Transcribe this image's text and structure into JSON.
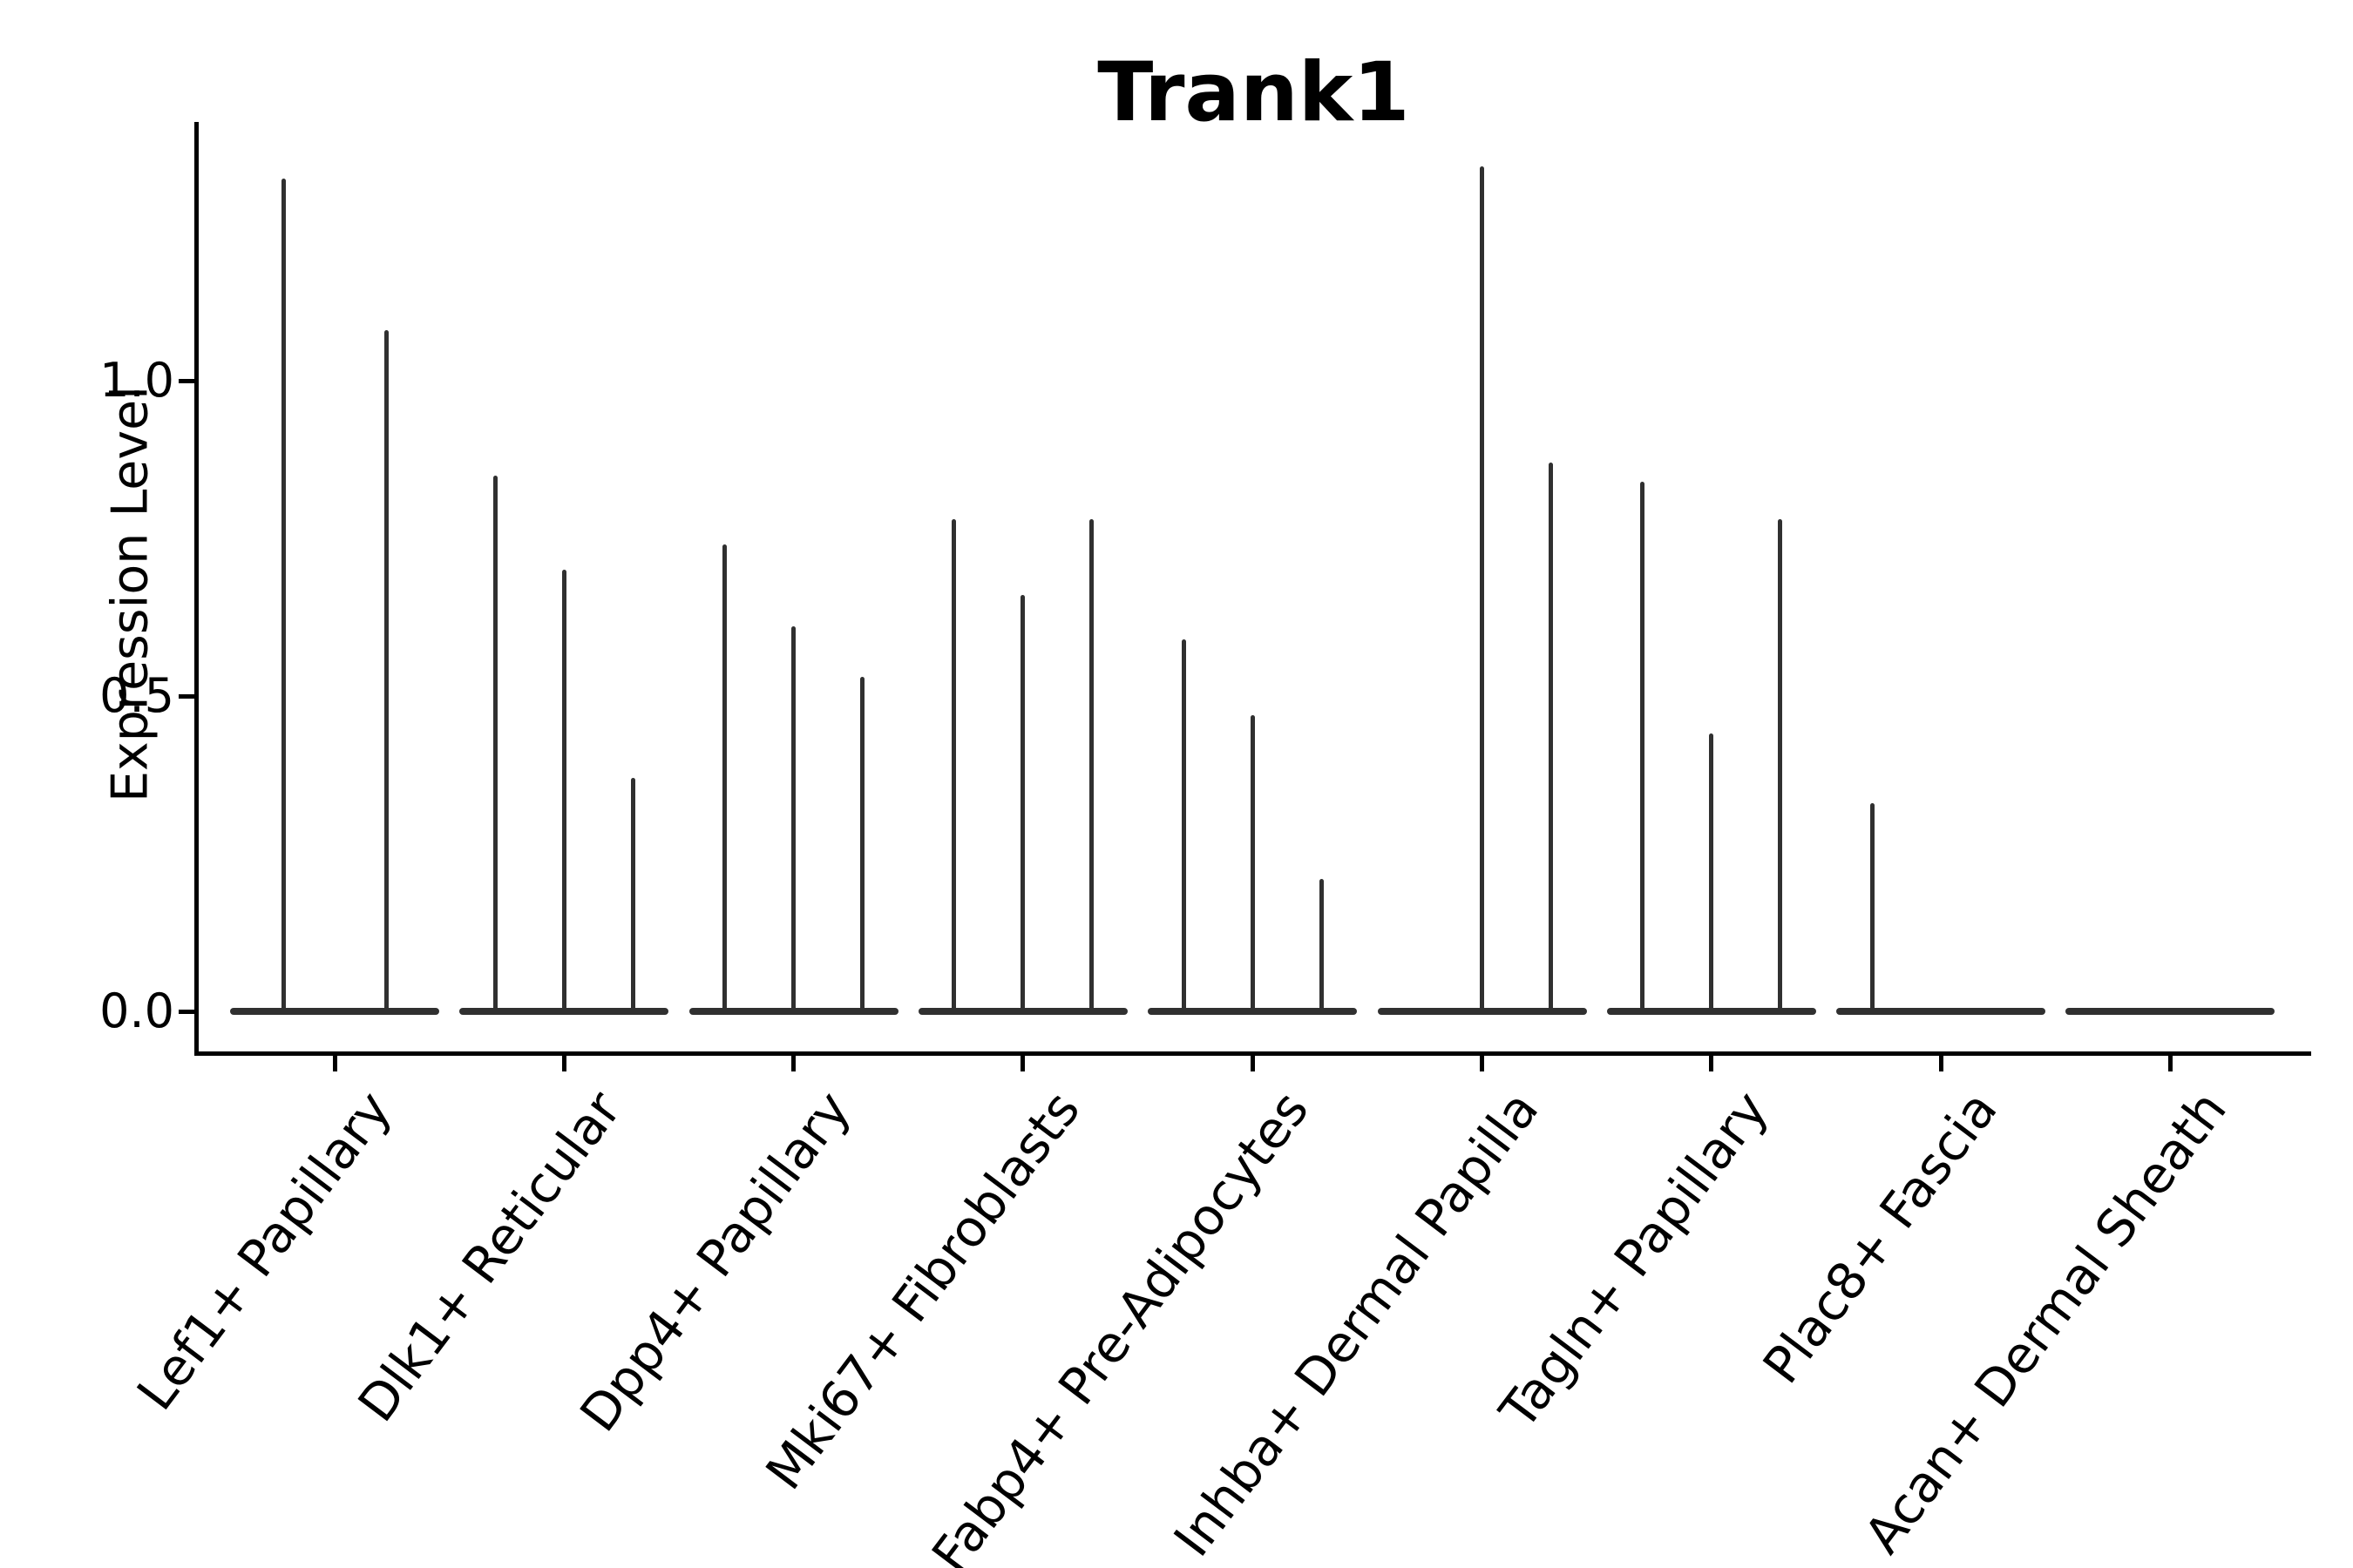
{
  "title": "Trank1",
  "chart_data": {
    "type": "violin",
    "title": "Trank1",
    "xlabel": "",
    "ylabel": "Expression Level",
    "ylim": [
      -0.07,
      1.41
    ],
    "yticks": [
      0.0,
      0.5,
      1.0
    ],
    "ytick_labels": [
      "0.0",
      "0.5",
      "1.0"
    ],
    "grid": false,
    "legend": "none",
    "categories": [
      "Lef1+ Papillary",
      "Dlk1+ Reticular",
      "Dpp4+ Papillary",
      "Mki67+ Fibroblasts",
      "Fabp4+ Pre-Adipocytes",
      "Inhba+ Dermal Papilla",
      "Tagln+ Papillary",
      "Plac8+ Fascia",
      "Acan+ Dermal Sheath"
    ],
    "groups": [
      {
        "category": "Lef1+ Papillary",
        "violins": [
          {
            "offset": -59,
            "peak": 1.32
          },
          {
            "offset": 59,
            "peak": 1.08
          }
        ]
      },
      {
        "category": "Dlk1+ Reticular",
        "violins": [
          {
            "offset": -79,
            "peak": 0.85
          },
          {
            "offset": 0,
            "peak": 0.7
          },
          {
            "offset": 79,
            "peak": 0.37
          }
        ]
      },
      {
        "category": "Dpp4+ Papillary",
        "violins": [
          {
            "offset": -79,
            "peak": 0.74
          },
          {
            "offset": 0,
            "peak": 0.61
          },
          {
            "offset": 79,
            "peak": 0.53
          }
        ]
      },
      {
        "category": "Mki67+ Fibroblasts",
        "violins": [
          {
            "offset": -79,
            "peak": 0.78
          },
          {
            "offset": 0,
            "peak": 0.66
          },
          {
            "offset": 79,
            "peak": 0.78
          }
        ]
      },
      {
        "category": "Fabp4+ Pre-Adipocytes",
        "violins": [
          {
            "offset": -79,
            "peak": 0.59
          },
          {
            "offset": 0,
            "peak": 0.47
          },
          {
            "offset": 79,
            "peak": 0.21
          }
        ]
      },
      {
        "category": "Inhba+ Dermal Papilla",
        "violins": [
          {
            "offset": 0,
            "peak": 1.34
          },
          {
            "offset": 79,
            "peak": 0.87
          }
        ]
      },
      {
        "category": "Tagln+ Papillary",
        "violins": [
          {
            "offset": -79,
            "peak": 0.84
          },
          {
            "offset": 0,
            "peak": 0.44
          },
          {
            "offset": 79,
            "peak": 0.78
          }
        ]
      },
      {
        "category": "Plac8+ Fascia",
        "violins": [
          {
            "offset": -79,
            "peak": 0.33
          }
        ]
      },
      {
        "category": "Acan+ Dermal Sheath",
        "violins": []
      }
    ],
    "colors": {
      "violin": "#303030",
      "axis": "#000000",
      "background": "#ffffff"
    }
  }
}
